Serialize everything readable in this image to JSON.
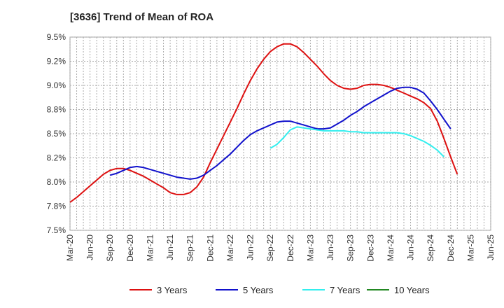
{
  "chart_data": {
    "type": "line",
    "title": "[3636]  Trend of Mean of ROA",
    "xlabel": "",
    "ylabel": "",
    "y_tick_labels": [
      "7.5%",
      "7.8%",
      "8.0%",
      "8.2%",
      "8.5%",
      "8.8%",
      "9.0%",
      "9.2%",
      "9.5%"
    ],
    "x_tick_labels": [
      "Mar-20",
      "Jun-20",
      "Sep-20",
      "Dec-20",
      "Mar-21",
      "Jun-21",
      "Sep-21",
      "Dec-21",
      "Mar-22",
      "Jun-22",
      "Sep-22",
      "Dec-22",
      "Mar-23",
      "Jun-23",
      "Sep-23",
      "Dec-23",
      "Mar-24",
      "Jun-24",
      "Sep-24",
      "Dec-24",
      "Mar-25",
      "Jun-25"
    ],
    "ylim": [
      7.5,
      9.5
    ],
    "grid": true,
    "legend_position": "bottom",
    "series": [
      {
        "name": "3 Years",
        "color": "#dd1111",
        "points": [
          [
            "Mar-20",
            7.79
          ],
          [
            "Apr-20",
            7.84
          ],
          [
            "May-20",
            7.9
          ],
          [
            "Jun-20",
            7.96
          ],
          [
            "Jul-20",
            8.02
          ],
          [
            "Aug-20",
            8.08
          ],
          [
            "Sep-20",
            8.12
          ],
          [
            "Oct-20",
            8.14
          ],
          [
            "Nov-20",
            8.14
          ],
          [
            "Dec-20",
            8.12
          ],
          [
            "Jan-21",
            8.09
          ],
          [
            "Feb-21",
            8.06
          ],
          [
            "Mar-21",
            8.02
          ],
          [
            "Apr-21",
            7.98
          ],
          [
            "May-21",
            7.94
          ],
          [
            "Jun-21",
            7.89
          ],
          [
            "Jul-21",
            7.87
          ],
          [
            "Aug-21",
            7.87
          ],
          [
            "Sep-21",
            7.89
          ],
          [
            "Oct-21",
            7.95
          ],
          [
            "Nov-21",
            8.05
          ],
          [
            "Dec-21",
            8.2
          ],
          [
            "Jan-22",
            8.34
          ],
          [
            "Feb-22",
            8.48
          ],
          [
            "Mar-22",
            8.62
          ],
          [
            "Apr-22",
            8.76
          ],
          [
            "May-22",
            8.91
          ],
          [
            "Jun-22",
            9.05
          ],
          [
            "Jul-22",
            9.17
          ],
          [
            "Aug-22",
            9.27
          ],
          [
            "Sep-22",
            9.35
          ],
          [
            "Oct-22",
            9.4
          ],
          [
            "Nov-22",
            9.43
          ],
          [
            "Dec-22",
            9.43
          ],
          [
            "Jan-23",
            9.4
          ],
          [
            "Feb-23",
            9.34
          ],
          [
            "Mar-23",
            9.27
          ],
          [
            "Apr-23",
            9.2
          ],
          [
            "May-23",
            9.12
          ],
          [
            "Jun-23",
            9.05
          ],
          [
            "Jul-23",
            9.0
          ],
          [
            "Aug-23",
            8.97
          ],
          [
            "Sep-23",
            8.96
          ],
          [
            "Oct-23",
            8.97
          ],
          [
            "Nov-23",
            9.0
          ],
          [
            "Dec-23",
            9.01
          ],
          [
            "Jan-24",
            9.01
          ],
          [
            "Feb-24",
            9.0
          ],
          [
            "Mar-24",
            8.98
          ],
          [
            "Apr-24",
            8.95
          ],
          [
            "May-24",
            8.92
          ],
          [
            "Jun-24",
            8.89
          ],
          [
            "Jul-24",
            8.86
          ],
          [
            "Aug-24",
            8.82
          ],
          [
            "Sep-24",
            8.76
          ],
          [
            "Oct-24",
            8.63
          ],
          [
            "Nov-24",
            8.45
          ],
          [
            "Dec-24",
            8.26
          ],
          [
            "Jan-25",
            8.08
          ]
        ]
      },
      {
        "name": "5 Years",
        "color": "#1111cc",
        "points": [
          [
            "Sep-20",
            8.07
          ],
          [
            "Oct-20",
            8.09
          ],
          [
            "Nov-20",
            8.12
          ],
          [
            "Dec-20",
            8.15
          ],
          [
            "Jan-21",
            8.16
          ],
          [
            "Feb-21",
            8.15
          ],
          [
            "Mar-21",
            8.13
          ],
          [
            "Apr-21",
            8.11
          ],
          [
            "May-21",
            8.09
          ],
          [
            "Jun-21",
            8.07
          ],
          [
            "Jul-21",
            8.05
          ],
          [
            "Aug-21",
            8.04
          ],
          [
            "Sep-21",
            8.03
          ],
          [
            "Oct-21",
            8.04
          ],
          [
            "Nov-21",
            8.07
          ],
          [
            "Dec-21",
            8.12
          ],
          [
            "Jan-22",
            8.17
          ],
          [
            "Feb-22",
            8.23
          ],
          [
            "Mar-22",
            8.29
          ],
          [
            "Apr-22",
            8.36
          ],
          [
            "May-22",
            8.43
          ],
          [
            "Jun-22",
            8.49
          ],
          [
            "Jul-22",
            8.53
          ],
          [
            "Aug-22",
            8.56
          ],
          [
            "Sep-22",
            8.59
          ],
          [
            "Oct-22",
            8.62
          ],
          [
            "Nov-22",
            8.63
          ],
          [
            "Dec-22",
            8.63
          ],
          [
            "Jan-23",
            8.61
          ],
          [
            "Feb-23",
            8.59
          ],
          [
            "Mar-23",
            8.57
          ],
          [
            "Apr-23",
            8.55
          ],
          [
            "May-23",
            8.55
          ],
          [
            "Jun-23",
            8.56
          ],
          [
            "Jul-23",
            8.6
          ],
          [
            "Aug-23",
            8.64
          ],
          [
            "Sep-23",
            8.69
          ],
          [
            "Oct-23",
            8.73
          ],
          [
            "Nov-23",
            8.78
          ],
          [
            "Dec-23",
            8.82
          ],
          [
            "Jan-24",
            8.86
          ],
          [
            "Feb-24",
            8.9
          ],
          [
            "Mar-24",
            8.94
          ],
          [
            "Apr-24",
            8.97
          ],
          [
            "May-24",
            8.98
          ],
          [
            "Jun-24",
            8.98
          ],
          [
            "Jul-24",
            8.96
          ],
          [
            "Aug-24",
            8.92
          ],
          [
            "Sep-24",
            8.84
          ],
          [
            "Oct-24",
            8.75
          ],
          [
            "Nov-24",
            8.65
          ],
          [
            "Dec-24",
            8.55
          ]
        ]
      },
      {
        "name": "7 Years",
        "color": "#33eeee",
        "points": [
          [
            "Sep-22",
            8.35
          ],
          [
            "Oct-22",
            8.39
          ],
          [
            "Nov-22",
            8.46
          ],
          [
            "Dec-22",
            8.54
          ],
          [
            "Jan-23",
            8.57
          ],
          [
            "Feb-23",
            8.56
          ],
          [
            "Mar-23",
            8.55
          ],
          [
            "Apr-23",
            8.54
          ],
          [
            "May-23",
            8.53
          ],
          [
            "Jun-23",
            8.53
          ],
          [
            "Jul-23",
            8.53
          ],
          [
            "Aug-23",
            8.53
          ],
          [
            "Sep-23",
            8.52
          ],
          [
            "Oct-23",
            8.52
          ],
          [
            "Nov-23",
            8.51
          ],
          [
            "Dec-23",
            8.51
          ],
          [
            "Jan-24",
            8.51
          ],
          [
            "Feb-24",
            8.51
          ],
          [
            "Mar-24",
            8.51
          ],
          [
            "Apr-24",
            8.51
          ],
          [
            "May-24",
            8.5
          ],
          [
            "Jun-24",
            8.48
          ],
          [
            "Jul-24",
            8.45
          ],
          [
            "Aug-24",
            8.42
          ],
          [
            "Sep-24",
            8.38
          ],
          [
            "Oct-24",
            8.33
          ],
          [
            "Nov-24",
            8.26
          ]
        ]
      },
      {
        "name": "10 Years",
        "color": "#228822",
        "points": []
      }
    ]
  }
}
